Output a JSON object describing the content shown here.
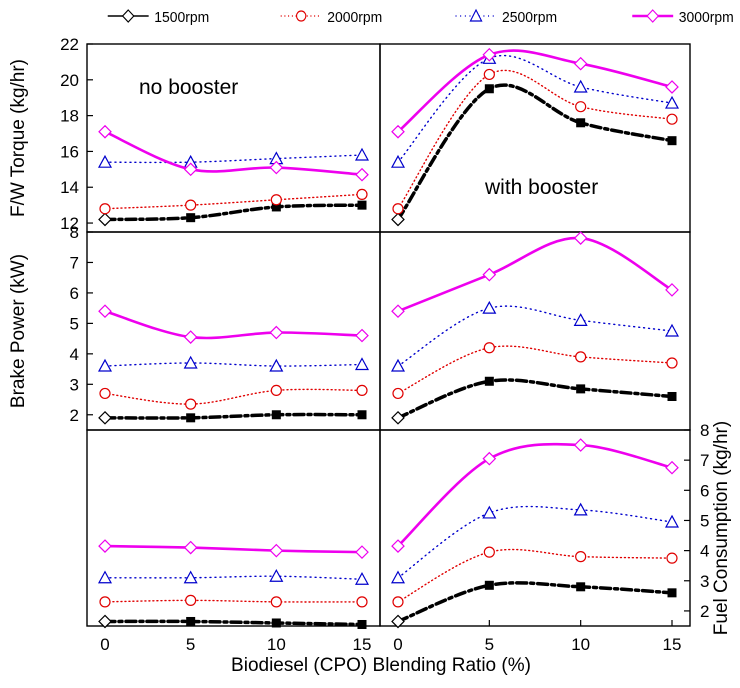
{
  "figure": {
    "xlabel": "Biodiesel (CPO) Blending Ratio (%)",
    "annotations": {
      "no_booster": "no booster",
      "with_booster": "with booster"
    }
  },
  "legend": [
    {
      "label": "1500rpm",
      "color": "#000000",
      "marker": "diamond"
    },
    {
      "label": "2000rpm",
      "color": "#e00000",
      "marker": "circle"
    },
    {
      "label": "2500rpm",
      "color": "#0000cc",
      "marker": "triangle"
    },
    {
      "label": "3000rpm",
      "color": "#ee00ee",
      "marker": "diamond"
    }
  ],
  "chart_data": [
    {
      "type": "line",
      "row": "top",
      "panel": "left",
      "condition": "no booster",
      "ylabel": "F/W Torque (kg/hr)",
      "ylim": [
        11.5,
        22
      ],
      "yticks": [
        12,
        14,
        16,
        18,
        20,
        22
      ],
      "x": [
        0,
        5,
        10,
        15
      ],
      "series": [
        {
          "name": "1500rpm",
          "values": [
            12.2,
            12.3,
            12.9,
            13.0
          ]
        },
        {
          "name": "2000rpm",
          "values": [
            12.8,
            13.0,
            13.3,
            13.6
          ]
        },
        {
          "name": "2500rpm",
          "values": [
            15.4,
            15.4,
            15.6,
            15.8
          ]
        },
        {
          "name": "3000rpm",
          "values": [
            17.1,
            15.0,
            15.1,
            14.7
          ]
        }
      ]
    },
    {
      "type": "line",
      "row": "top",
      "panel": "right",
      "condition": "with booster",
      "ylim": [
        11.5,
        22
      ],
      "x": [
        0,
        5,
        10,
        15
      ],
      "series": [
        {
          "name": "1500rpm",
          "values": [
            12.2,
            19.5,
            17.6,
            16.6
          ]
        },
        {
          "name": "2000rpm",
          "values": [
            12.8,
            20.3,
            18.5,
            17.8
          ]
        },
        {
          "name": "2500rpm",
          "values": [
            15.4,
            21.2,
            19.6,
            18.7
          ]
        },
        {
          "name": "3000rpm",
          "values": [
            17.1,
            21.4,
            20.9,
            19.6
          ]
        }
      ]
    },
    {
      "type": "line",
      "row": "middle",
      "panel": "left",
      "condition": "no booster",
      "ylabel": "Brake Power (kW)",
      "ylim": [
        1.5,
        8
      ],
      "yticks": [
        2,
        3,
        4,
        5,
        6,
        7,
        8
      ],
      "x": [
        0,
        5,
        10,
        15
      ],
      "series": [
        {
          "name": "1500rpm",
          "values": [
            1.9,
            1.9,
            2.0,
            2.0
          ]
        },
        {
          "name": "2000rpm",
          "values": [
            2.7,
            2.35,
            2.8,
            2.8
          ]
        },
        {
          "name": "2500rpm",
          "values": [
            3.6,
            3.7,
            3.6,
            3.65
          ]
        },
        {
          "name": "3000rpm",
          "values": [
            5.4,
            4.55,
            4.7,
            4.6
          ]
        }
      ]
    },
    {
      "type": "line",
      "row": "middle",
      "panel": "right",
      "condition": "with booster",
      "ylim": [
        1.5,
        8
      ],
      "x": [
        0,
        5,
        10,
        15
      ],
      "series": [
        {
          "name": "1500rpm",
          "values": [
            1.9,
            3.1,
            2.85,
            2.6
          ]
        },
        {
          "name": "2000rpm",
          "values": [
            2.7,
            4.2,
            3.9,
            3.7
          ]
        },
        {
          "name": "2500rpm",
          "values": [
            3.6,
            5.5,
            5.1,
            4.75
          ]
        },
        {
          "name": "3000rpm",
          "values": [
            5.4,
            6.6,
            7.8,
            6.1
          ]
        }
      ]
    },
    {
      "type": "line",
      "row": "bottom",
      "panel": "left",
      "condition": "no booster",
      "ylim": [
        1.5,
        8
      ],
      "x": [
        0,
        5,
        10,
        15
      ],
      "series": [
        {
          "name": "1500rpm",
          "values": [
            1.65,
            1.65,
            1.6,
            1.55
          ]
        },
        {
          "name": "2000rpm",
          "values": [
            2.3,
            2.35,
            2.3,
            2.3
          ]
        },
        {
          "name": "2500rpm",
          "values": [
            3.1,
            3.1,
            3.15,
            3.05
          ]
        },
        {
          "name": "3000rpm",
          "values": [
            4.15,
            4.1,
            4.0,
            3.95
          ]
        }
      ]
    },
    {
      "type": "line",
      "row": "bottom",
      "panel": "right",
      "condition": "with booster",
      "ylabel": "Fuel Consumption (kg/hr)",
      "ylim": [
        1.5,
        8
      ],
      "yticks": [
        2,
        3,
        4,
        5,
        6,
        7,
        8
      ],
      "x": [
        0,
        5,
        10,
        15
      ],
      "series": [
        {
          "name": "1500rpm",
          "values": [
            1.65,
            2.85,
            2.8,
            2.6
          ]
        },
        {
          "name": "2000rpm",
          "values": [
            2.3,
            3.95,
            3.8,
            3.75
          ]
        },
        {
          "name": "2500rpm",
          "values": [
            3.1,
            5.25,
            5.35,
            4.95
          ]
        },
        {
          "name": "3000rpm",
          "values": [
            4.15,
            7.05,
            7.5,
            6.75
          ]
        }
      ]
    }
  ]
}
